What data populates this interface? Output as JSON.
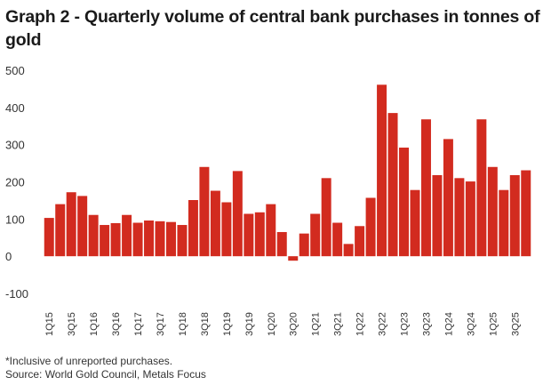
{
  "title": "Graph 2 - Quarterly volume of central bank purchases in tonnes of gold",
  "footnote": "*Inclusive of unreported purchases.",
  "source": "Source: World Gold Council, Metals Focus",
  "colors": {
    "bar": "#d22b1f"
  },
  "chart_data": {
    "type": "bar",
    "title": "Graph 2 - Quarterly volume of central bank purchases in tonnes of gold",
    "xlabel": "",
    "ylabel": "",
    "ylim": [
      -100,
      500
    ],
    "yticks": [
      -100,
      0,
      100,
      200,
      300,
      400,
      500
    ],
    "grid": false,
    "categories": [
      "1Q15",
      "2Q15",
      "3Q15",
      "4Q15",
      "1Q16",
      "2Q16",
      "3Q16",
      "4Q16",
      "1Q17",
      "2Q17",
      "3Q17",
      "4Q17",
      "1Q18",
      "2Q18",
      "3Q18",
      "4Q18",
      "1Q19",
      "2Q19",
      "3Q19",
      "4Q19",
      "1Q20",
      "2Q20",
      "3Q20",
      "4Q20",
      "1Q21",
      "2Q21",
      "3Q21",
      "4Q21",
      "1Q22",
      "2Q22",
      "3Q22",
      "4Q22",
      "1Q23",
      "2Q23",
      "3Q23",
      "4Q23",
      "1Q24",
      "2Q24",
      "3Q24",
      "4Q24",
      "1Q25",
      "2Q25",
      "3Q25",
      "4Q25"
    ],
    "tick_labels": [
      "1Q15",
      "3Q15",
      "1Q16",
      "3Q16",
      "1Q17",
      "3Q17",
      "1Q18",
      "3Q18",
      "1Q19",
      "3Q19",
      "1Q20",
      "3Q20",
      "1Q21",
      "3Q21",
      "1Q22",
      "3Q22",
      "1Q23",
      "3Q23",
      "1Q24",
      "3Q24",
      "1Q25",
      "3Q25"
    ],
    "values": [
      103,
      140,
      172,
      162,
      111,
      84,
      89,
      111,
      90,
      96,
      94,
      92,
      84,
      151,
      240,
      176,
      145,
      229,
      114,
      118,
      140,
      65,
      -12,
      61,
      114,
      210,
      90,
      33,
      81,
      157,
      461,
      385,
      292,
      178,
      368,
      218,
      315,
      210,
      201,
      368,
      240,
      178,
      218,
      231
    ]
  }
}
